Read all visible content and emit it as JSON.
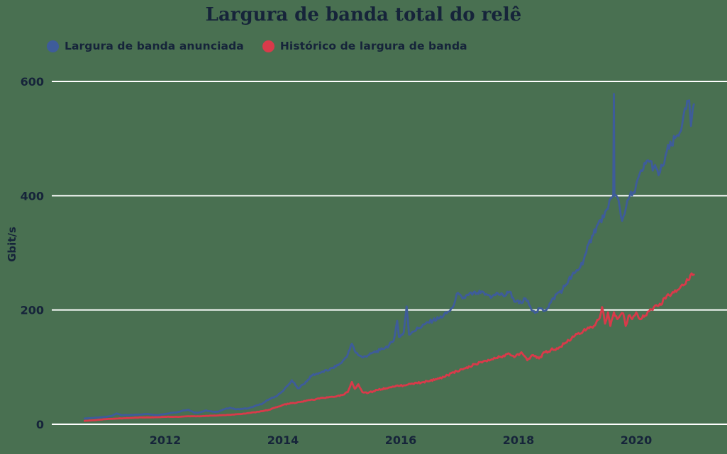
{
  "chart_data": {
    "type": "line",
    "title": "Largura de banda total do relê",
    "xlabel": "",
    "ylabel": "Gbit/s",
    "x_ticks": [
      2012,
      2014,
      2016,
      2018,
      2020
    ],
    "y_ticks": [
      0,
      200,
      400,
      600
    ],
    "xlim": [
      2010.6,
      2021.05
    ],
    "ylim": [
      0,
      620
    ],
    "grid": "horizontal",
    "gridline_color": "#FFFFFF",
    "background_color": "#497051",
    "text_color": "#16243A",
    "legend_position": "top-left",
    "series": [
      {
        "name": "Largura de banda anunciada",
        "color": "#3E5C9A",
        "jitter": 0.02,
        "points": [
          [
            2010.63,
            10
          ],
          [
            2010.75,
            11
          ],
          [
            2010.9,
            12
          ],
          [
            2011.0,
            13
          ],
          [
            2011.1,
            15
          ],
          [
            2011.17,
            19
          ],
          [
            2011.25,
            16
          ],
          [
            2011.4,
            16
          ],
          [
            2011.55,
            17
          ],
          [
            2011.7,
            18
          ],
          [
            2011.85,
            16
          ],
          [
            2012.0,
            18
          ],
          [
            2012.1,
            20
          ],
          [
            2012.2,
            21
          ],
          [
            2012.3,
            24
          ],
          [
            2012.4,
            25
          ],
          [
            2012.5,
            20
          ],
          [
            2012.6,
            21
          ],
          [
            2012.68,
            24
          ],
          [
            2012.8,
            22
          ],
          [
            2012.9,
            22
          ],
          [
            2013.0,
            26
          ],
          [
            2013.1,
            29
          ],
          [
            2013.2,
            26
          ],
          [
            2013.3,
            27
          ],
          [
            2013.42,
            28
          ],
          [
            2013.53,
            32
          ],
          [
            2013.65,
            36
          ],
          [
            2013.77,
            44
          ],
          [
            2013.9,
            50
          ],
          [
            2014.0,
            58
          ],
          [
            2014.1,
            70
          ],
          [
            2014.15,
            77
          ],
          [
            2014.25,
            63
          ],
          [
            2014.35,
            70
          ],
          [
            2014.5,
            86
          ],
          [
            2014.65,
            91
          ],
          [
            2014.75,
            94
          ],
          [
            2014.9,
            101
          ],
          [
            2015.0,
            108
          ],
          [
            2015.1,
            122
          ],
          [
            2015.17,
            141
          ],
          [
            2015.22,
            128
          ],
          [
            2015.3,
            120
          ],
          [
            2015.36,
            117
          ],
          [
            2015.5,
            124
          ],
          [
            2015.65,
            130
          ],
          [
            2015.8,
            138
          ],
          [
            2015.88,
            146
          ],
          [
            2015.94,
            181
          ],
          [
            2015.97,
            153
          ],
          [
            2016.05,
            160
          ],
          [
            2016.1,
            206
          ],
          [
            2016.14,
            157
          ],
          [
            2016.2,
            162
          ],
          [
            2016.3,
            168
          ],
          [
            2016.42,
            176
          ],
          [
            2016.55,
            182
          ],
          [
            2016.66,
            186
          ],
          [
            2016.78,
            194
          ],
          [
            2016.88,
            204
          ],
          [
            2016.95,
            228
          ],
          [
            2017.05,
            220
          ],
          [
            2017.15,
            226
          ],
          [
            2017.3,
            230
          ],
          [
            2017.45,
            228
          ],
          [
            2017.55,
            223
          ],
          [
            2017.65,
            229
          ],
          [
            2017.75,
            224
          ],
          [
            2017.85,
            232
          ],
          [
            2017.95,
            214
          ],
          [
            2018.05,
            212
          ],
          [
            2018.12,
            220
          ],
          [
            2018.2,
            206
          ],
          [
            2018.3,
            196
          ],
          [
            2018.38,
            203
          ],
          [
            2018.45,
            199
          ],
          [
            2018.55,
            213
          ],
          [
            2018.65,
            228
          ],
          [
            2018.75,
            236
          ],
          [
            2018.85,
            252
          ],
          [
            2018.95,
            264
          ],
          [
            2019.05,
            275
          ],
          [
            2019.15,
            300
          ],
          [
            2019.25,
            330
          ],
          [
            2019.35,
            350
          ],
          [
            2019.45,
            362
          ],
          [
            2019.52,
            377
          ],
          [
            2019.57,
            396
          ],
          [
            2019.61,
            400
          ],
          [
            2019.62,
            578
          ],
          [
            2019.63,
            400
          ],
          [
            2019.7,
            392
          ],
          [
            2019.76,
            356
          ],
          [
            2019.85,
            392
          ],
          [
            2019.95,
            406
          ],
          [
            2020.0,
            420
          ],
          [
            2020.1,
            443
          ],
          [
            2020.2,
            462
          ],
          [
            2020.3,
            450
          ],
          [
            2020.38,
            436
          ],
          [
            2020.45,
            452
          ],
          [
            2020.52,
            478
          ],
          [
            2020.6,
            488
          ],
          [
            2020.7,
            506
          ],
          [
            2020.78,
            524
          ],
          [
            2020.85,
            552
          ],
          [
            2020.9,
            567
          ],
          [
            2020.93,
            522
          ],
          [
            2020.96,
            552
          ],
          [
            2020.98,
            560
          ]
        ]
      },
      {
        "name": "Histórico de largura de banda",
        "color": "#D93A4A",
        "jitter": 0.02,
        "points": [
          [
            2010.63,
            6
          ],
          [
            2010.8,
            7
          ],
          [
            2011.0,
            9
          ],
          [
            2011.2,
            10
          ],
          [
            2011.4,
            11
          ],
          [
            2011.6,
            12
          ],
          [
            2011.8,
            12
          ],
          [
            2012.0,
            13
          ],
          [
            2012.2,
            13
          ],
          [
            2012.4,
            14
          ],
          [
            2012.6,
            14
          ],
          [
            2012.8,
            15
          ],
          [
            2013.0,
            16
          ],
          [
            2013.15,
            17
          ],
          [
            2013.3,
            18
          ],
          [
            2013.45,
            20
          ],
          [
            2013.6,
            22
          ],
          [
            2013.75,
            25
          ],
          [
            2013.9,
            30
          ],
          [
            2014.0,
            34
          ],
          [
            2014.15,
            37
          ],
          [
            2014.3,
            39
          ],
          [
            2014.5,
            43
          ],
          [
            2014.7,
            46
          ],
          [
            2014.85,
            48
          ],
          [
            2015.0,
            51
          ],
          [
            2015.1,
            56
          ],
          [
            2015.17,
            74
          ],
          [
            2015.22,
            62
          ],
          [
            2015.28,
            70
          ],
          [
            2015.35,
            56
          ],
          [
            2015.45,
            55
          ],
          [
            2015.6,
            60
          ],
          [
            2015.75,
            63
          ],
          [
            2015.9,
            66
          ],
          [
            2016.05,
            68
          ],
          [
            2016.2,
            71
          ],
          [
            2016.35,
            73
          ],
          [
            2016.5,
            76
          ],
          [
            2016.65,
            80
          ],
          [
            2016.8,
            86
          ],
          [
            2016.95,
            93
          ],
          [
            2017.1,
            98
          ],
          [
            2017.25,
            105
          ],
          [
            2017.4,
            110
          ],
          [
            2017.55,
            114
          ],
          [
            2017.7,
            118
          ],
          [
            2017.85,
            123
          ],
          [
            2017.95,
            119
          ],
          [
            2018.05,
            126
          ],
          [
            2018.15,
            112
          ],
          [
            2018.25,
            121
          ],
          [
            2018.35,
            115
          ],
          [
            2018.45,
            126
          ],
          [
            2018.55,
            130
          ],
          [
            2018.65,
            133
          ],
          [
            2018.78,
            141
          ],
          [
            2018.9,
            150
          ],
          [
            2019.0,
            158
          ],
          [
            2019.1,
            163
          ],
          [
            2019.2,
            168
          ],
          [
            2019.3,
            173
          ],
          [
            2019.38,
            186
          ],
          [
            2019.42,
            205
          ],
          [
            2019.47,
            176
          ],
          [
            2019.52,
            196
          ],
          [
            2019.56,
            172
          ],
          [
            2019.62,
            196
          ],
          [
            2019.68,
            184
          ],
          [
            2019.73,
            191
          ],
          [
            2019.78,
            194
          ],
          [
            2019.82,
            172
          ],
          [
            2019.87,
            190
          ],
          [
            2019.93,
            184
          ],
          [
            2020.0,
            196
          ],
          [
            2020.08,
            184
          ],
          [
            2020.15,
            190
          ],
          [
            2020.22,
            198
          ],
          [
            2020.3,
            205
          ],
          [
            2020.4,
            211
          ],
          [
            2020.5,
            220
          ],
          [
            2020.6,
            228
          ],
          [
            2020.7,
            235
          ],
          [
            2020.8,
            243
          ],
          [
            2020.88,
            252
          ],
          [
            2020.94,
            264
          ],
          [
            2020.98,
            262
          ]
        ]
      }
    ]
  }
}
